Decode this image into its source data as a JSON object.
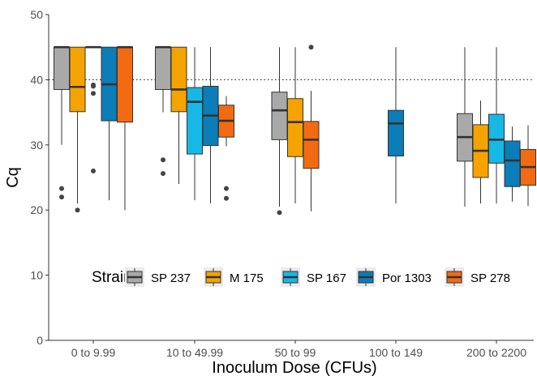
{
  "chart_data": {
    "type": "box",
    "title": "",
    "xlabel": "Inoculum Dose (CFUs)",
    "ylabel": "Cq",
    "ylim": [
      0,
      50
    ],
    "yticks": [
      0,
      10,
      20,
      30,
      40,
      50
    ],
    "grid": false,
    "reference_line": {
      "y": 40,
      "style": "dotted",
      "color": "#333333"
    },
    "categories": [
      "0 to 9.99",
      "10 to 49.99",
      "50 to 99",
      "100 to 149",
      "200 to 2200"
    ],
    "legend": {
      "title": "Strain",
      "placement": "inside-bottom"
    },
    "series": [
      {
        "name": "SP 237",
        "color": "#A9A9A9",
        "boxes": [
          {
            "category": "0 to 9.99",
            "lower_whisker": 30,
            "q1": 38.5,
            "median": 45,
            "q3": 45,
            "upper_whisker": 45,
            "outliers": [
              23.3,
              22
            ]
          },
          {
            "category": "10 to 49.99",
            "lower_whisker": 35,
            "q1": 38.5,
            "median": 45,
            "q3": 45,
            "upper_whisker": 45,
            "outliers": [
              27.7,
              25.6
            ]
          },
          {
            "category": "50 to 99",
            "lower_whisker": 20.5,
            "q1": 30.8,
            "median": 35.3,
            "q3": 38.1,
            "upper_whisker": 45,
            "outliers": [
              19.6
            ]
          },
          {
            "category": "200 to 2200",
            "lower_whisker": 20.5,
            "q1": 27.5,
            "median": 31.2,
            "q3": 34.8,
            "upper_whisker": 45,
            "outliers": []
          }
        ]
      },
      {
        "name": "M 175",
        "color": "#F5A300",
        "boxes": [
          {
            "category": "0 to 9.99",
            "lower_whisker": 21,
            "q1": 35.1,
            "median": 38.9,
            "q3": 45,
            "upper_whisker": 45,
            "outliers": [
              20
            ]
          },
          {
            "category": "10 to 49.99",
            "lower_whisker": 24,
            "q1": 35.1,
            "median": 38.5,
            "q3": 45,
            "upper_whisker": 45,
            "outliers": []
          },
          {
            "category": "50 to 99",
            "lower_whisker": 21,
            "q1": 28.2,
            "median": 33.5,
            "q3": 37.1,
            "upper_whisker": 45,
            "outliers": []
          },
          {
            "category": "200 to 2200",
            "lower_whisker": 21,
            "q1": 25,
            "median": 29.1,
            "q3": 33.1,
            "upper_whisker": 36.8,
            "outliers": []
          }
        ]
      },
      {
        "name": "SP 167",
        "color": "#17B7E6",
        "boxes": [
          {
            "category": "0 to 9.99",
            "lower_whisker": 45,
            "q1": 45,
            "median": 45,
            "q3": 45,
            "upper_whisker": 45,
            "outliers": [
              39.2,
              39,
              37.9,
              26
            ]
          },
          {
            "category": "10 to 49.99",
            "lower_whisker": 21.5,
            "q1": 28.6,
            "median": 36.6,
            "q3": 38.8,
            "upper_whisker": 45,
            "outliers": []
          },
          {
            "category": "200 to 2200",
            "lower_whisker": 21,
            "q1": 27.2,
            "median": 30.8,
            "q3": 34.7,
            "upper_whisker": 45,
            "outliers": []
          }
        ]
      },
      {
        "name": "Por 1303",
        "color": "#0B7DB8",
        "boxes": [
          {
            "category": "0 to 9.99",
            "lower_whisker": 21.5,
            "q1": 33.7,
            "median": 39.3,
            "q3": 45,
            "upper_whisker": 45,
            "outliers": []
          },
          {
            "category": "10 to 49.99",
            "lower_whisker": 21,
            "q1": 29.9,
            "median": 34.5,
            "q3": 39,
            "upper_whisker": 45,
            "outliers": []
          },
          {
            "category": "100 to 149",
            "lower_whisker": 21,
            "q1": 28.3,
            "median": 33.3,
            "q3": 35.3,
            "upper_whisker": 45,
            "outliers": []
          },
          {
            "category": "200 to 2200",
            "lower_whisker": 21.3,
            "q1": 23.6,
            "median": 27.6,
            "q3": 30.6,
            "upper_whisker": 32.8,
            "outliers": []
          }
        ]
      },
      {
        "name": "SP 278",
        "color": "#F26A11",
        "boxes": [
          {
            "category": "0 to 9.99",
            "lower_whisker": 20,
            "q1": 33.5,
            "median": 45,
            "q3": 45,
            "upper_whisker": 45,
            "outliers": []
          },
          {
            "category": "10 to 49.99",
            "lower_whisker": 29.8,
            "q1": 31.2,
            "median": 33.7,
            "q3": 36.1,
            "upper_whisker": 37.5,
            "outliers": [
              23.3,
              21.8
            ]
          },
          {
            "category": "50 to 99",
            "lower_whisker": 19.8,
            "q1": 26.4,
            "median": 30.8,
            "q3": 33.6,
            "upper_whisker": 38.3,
            "outliers": [
              45
            ]
          },
          {
            "category": "200 to 2200",
            "lower_whisker": 20.6,
            "q1": 23.8,
            "median": 26.6,
            "q3": 29.3,
            "upper_whisker": 33,
            "outliers": []
          }
        ]
      }
    ]
  }
}
